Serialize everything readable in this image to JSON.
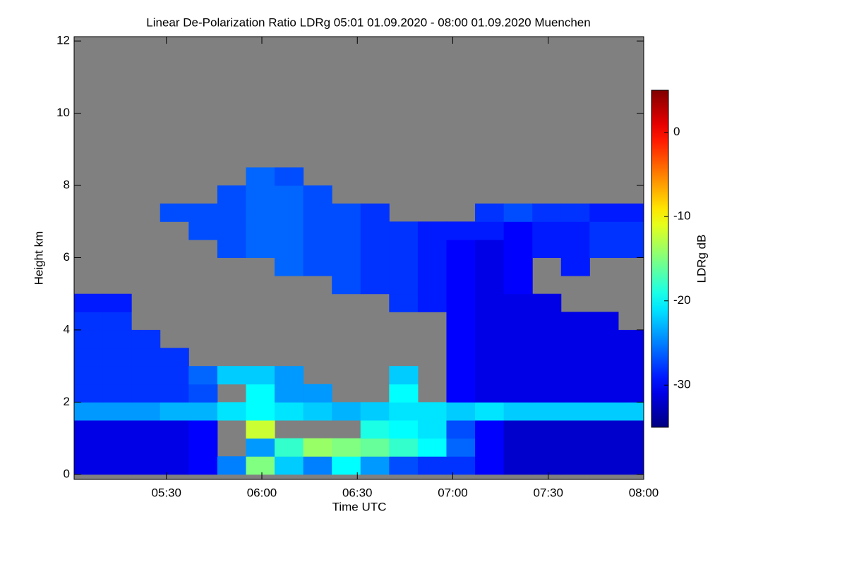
{
  "chart_data": {
    "type": "heatmap",
    "title": "Linear De-Polarization Ratio LDRg   05:01 01.09.2020 - 08:00 01.09.2020 Muenchen",
    "x_label": "Time UTC",
    "y_label": "Height km",
    "colorbar_label": "LDRg dB",
    "xlim": [
      301,
      480
    ],
    "xticks": [
      {
        "value": 330,
        "label": "05:30"
      },
      {
        "value": 360,
        "label": "06:00"
      },
      {
        "value": 390,
        "label": "06:30"
      },
      {
        "value": 420,
        "label": "07:00"
      },
      {
        "value": 450,
        "label": "07:30"
      },
      {
        "value": 480,
        "label": "08:00"
      }
    ],
    "ylim": [
      -0.14,
      12.12
    ],
    "yticks": [
      0,
      2,
      4,
      6,
      8,
      10,
      12
    ],
    "clim": [
      -35,
      5
    ],
    "cticks": [
      -30,
      -20,
      -10,
      0
    ],
    "colormap": "jet",
    "no_data_color": "#808080",
    "x_edges": [
      301,
      310,
      319,
      328,
      337,
      346,
      355,
      364,
      373,
      382,
      391,
      400,
      409,
      418,
      427,
      436,
      445,
      454,
      463,
      472,
      480
    ],
    "y_edges": [
      0,
      0.5,
      1,
      1.5,
      2,
      2.5,
      3,
      3.5,
      4,
      4.5,
      5,
      5.5,
      6,
      6.5,
      7,
      7.5,
      8,
      8.5
    ],
    "z": [
      [
        -31,
        -31,
        -31,
        -31,
        -30,
        -25,
        -15,
        -22,
        -25,
        -20,
        -24,
        -27,
        -28,
        -28,
        -30,
        -32,
        -32,
        -32,
        -32,
        -32
      ],
      [
        -31,
        -31,
        -31,
        -31,
        -30,
        null,
        -24,
        -18,
        -14,
        -15,
        -16,
        -18,
        -20,
        -26,
        -30,
        -32,
        -32,
        -32,
        -32,
        -32
      ],
      [
        -31,
        -31,
        -31,
        -31,
        -30,
        null,
        -12,
        null,
        null,
        null,
        -19,
        -20,
        -21,
        -27,
        -30,
        -32,
        -32,
        -32,
        -32,
        -32
      ],
      [
        -24,
        -24,
        -24,
        -23,
        -23,
        -21,
        -20,
        -21,
        -22,
        -23,
        -22,
        -21,
        -21,
        -22,
        -21,
        -22,
        -22,
        -22,
        -22,
        -22
      ],
      [
        -28,
        -28,
        -28,
        -28,
        -27,
        null,
        -20,
        -24,
        -24,
        null,
        null,
        -20,
        null,
        -30,
        -31,
        -31,
        -31,
        -31,
        -31,
        -31
      ],
      [
        -28,
        -28,
        -28,
        -28,
        -26,
        -22,
        -22,
        -24,
        null,
        null,
        null,
        -22,
        null,
        -30,
        -31,
        -31,
        -31,
        -31,
        -31,
        -31
      ],
      [
        -28,
        -28,
        -28,
        -28,
        null,
        null,
        null,
        null,
        null,
        null,
        null,
        null,
        null,
        -30,
        -31,
        -31,
        -31,
        -31,
        -31,
        -31
      ],
      [
        -28,
        -28,
        -28,
        null,
        null,
        null,
        null,
        null,
        null,
        null,
        null,
        null,
        null,
        -30,
        -31,
        -31,
        -31,
        -31,
        -31,
        -31
      ],
      [
        -28,
        -28,
        null,
        null,
        null,
        null,
        null,
        null,
        null,
        null,
        null,
        null,
        null,
        -30,
        -31,
        -31,
        -31,
        -31,
        -31,
        null
      ],
      [
        -29,
        -29,
        null,
        null,
        null,
        null,
        null,
        null,
        null,
        null,
        null,
        -28,
        -29,
        -30,
        -31,
        -31,
        -31,
        null,
        null,
        null
      ],
      [
        null,
        null,
        null,
        null,
        null,
        null,
        null,
        null,
        null,
        -27,
        -28,
        -28,
        -29,
        -30,
        -31,
        -30,
        null,
        null,
        null,
        null
      ],
      [
        null,
        null,
        null,
        null,
        null,
        null,
        null,
        -26,
        -27,
        -27,
        -28,
        -28,
        -29,
        -30,
        -31,
        -30,
        null,
        -29,
        null,
        null
      ],
      [
        null,
        null,
        null,
        null,
        null,
        -27,
        -26,
        -26,
        -27,
        -27,
        -28,
        -28,
        -29,
        -30,
        -31,
        -30,
        -29,
        -29,
        -28,
        -28
      ],
      [
        null,
        null,
        null,
        null,
        -27,
        -27,
        -26,
        -26,
        -27,
        -27,
        -28,
        -28,
        -29,
        -29,
        -29,
        -30,
        -29,
        -29,
        -28,
        -28
      ],
      [
        null,
        null,
        null,
        -27,
        -27,
        -27,
        -26,
        -26,
        -27,
        -27,
        -28,
        null,
        null,
        null,
        -28,
        -27,
        -28,
        -28,
        -29,
        -29
      ],
      [
        null,
        null,
        null,
        null,
        null,
        -27,
        -26,
        -26,
        -27,
        null,
        null,
        null,
        null,
        null,
        null,
        null,
        null,
        null,
        null,
        null
      ],
      [
        null,
        null,
        null,
        null,
        null,
        null,
        -26,
        -27,
        null,
        null,
        null,
        null,
        null,
        null,
        null,
        null,
        null,
        null,
        null,
        null
      ]
    ]
  }
}
